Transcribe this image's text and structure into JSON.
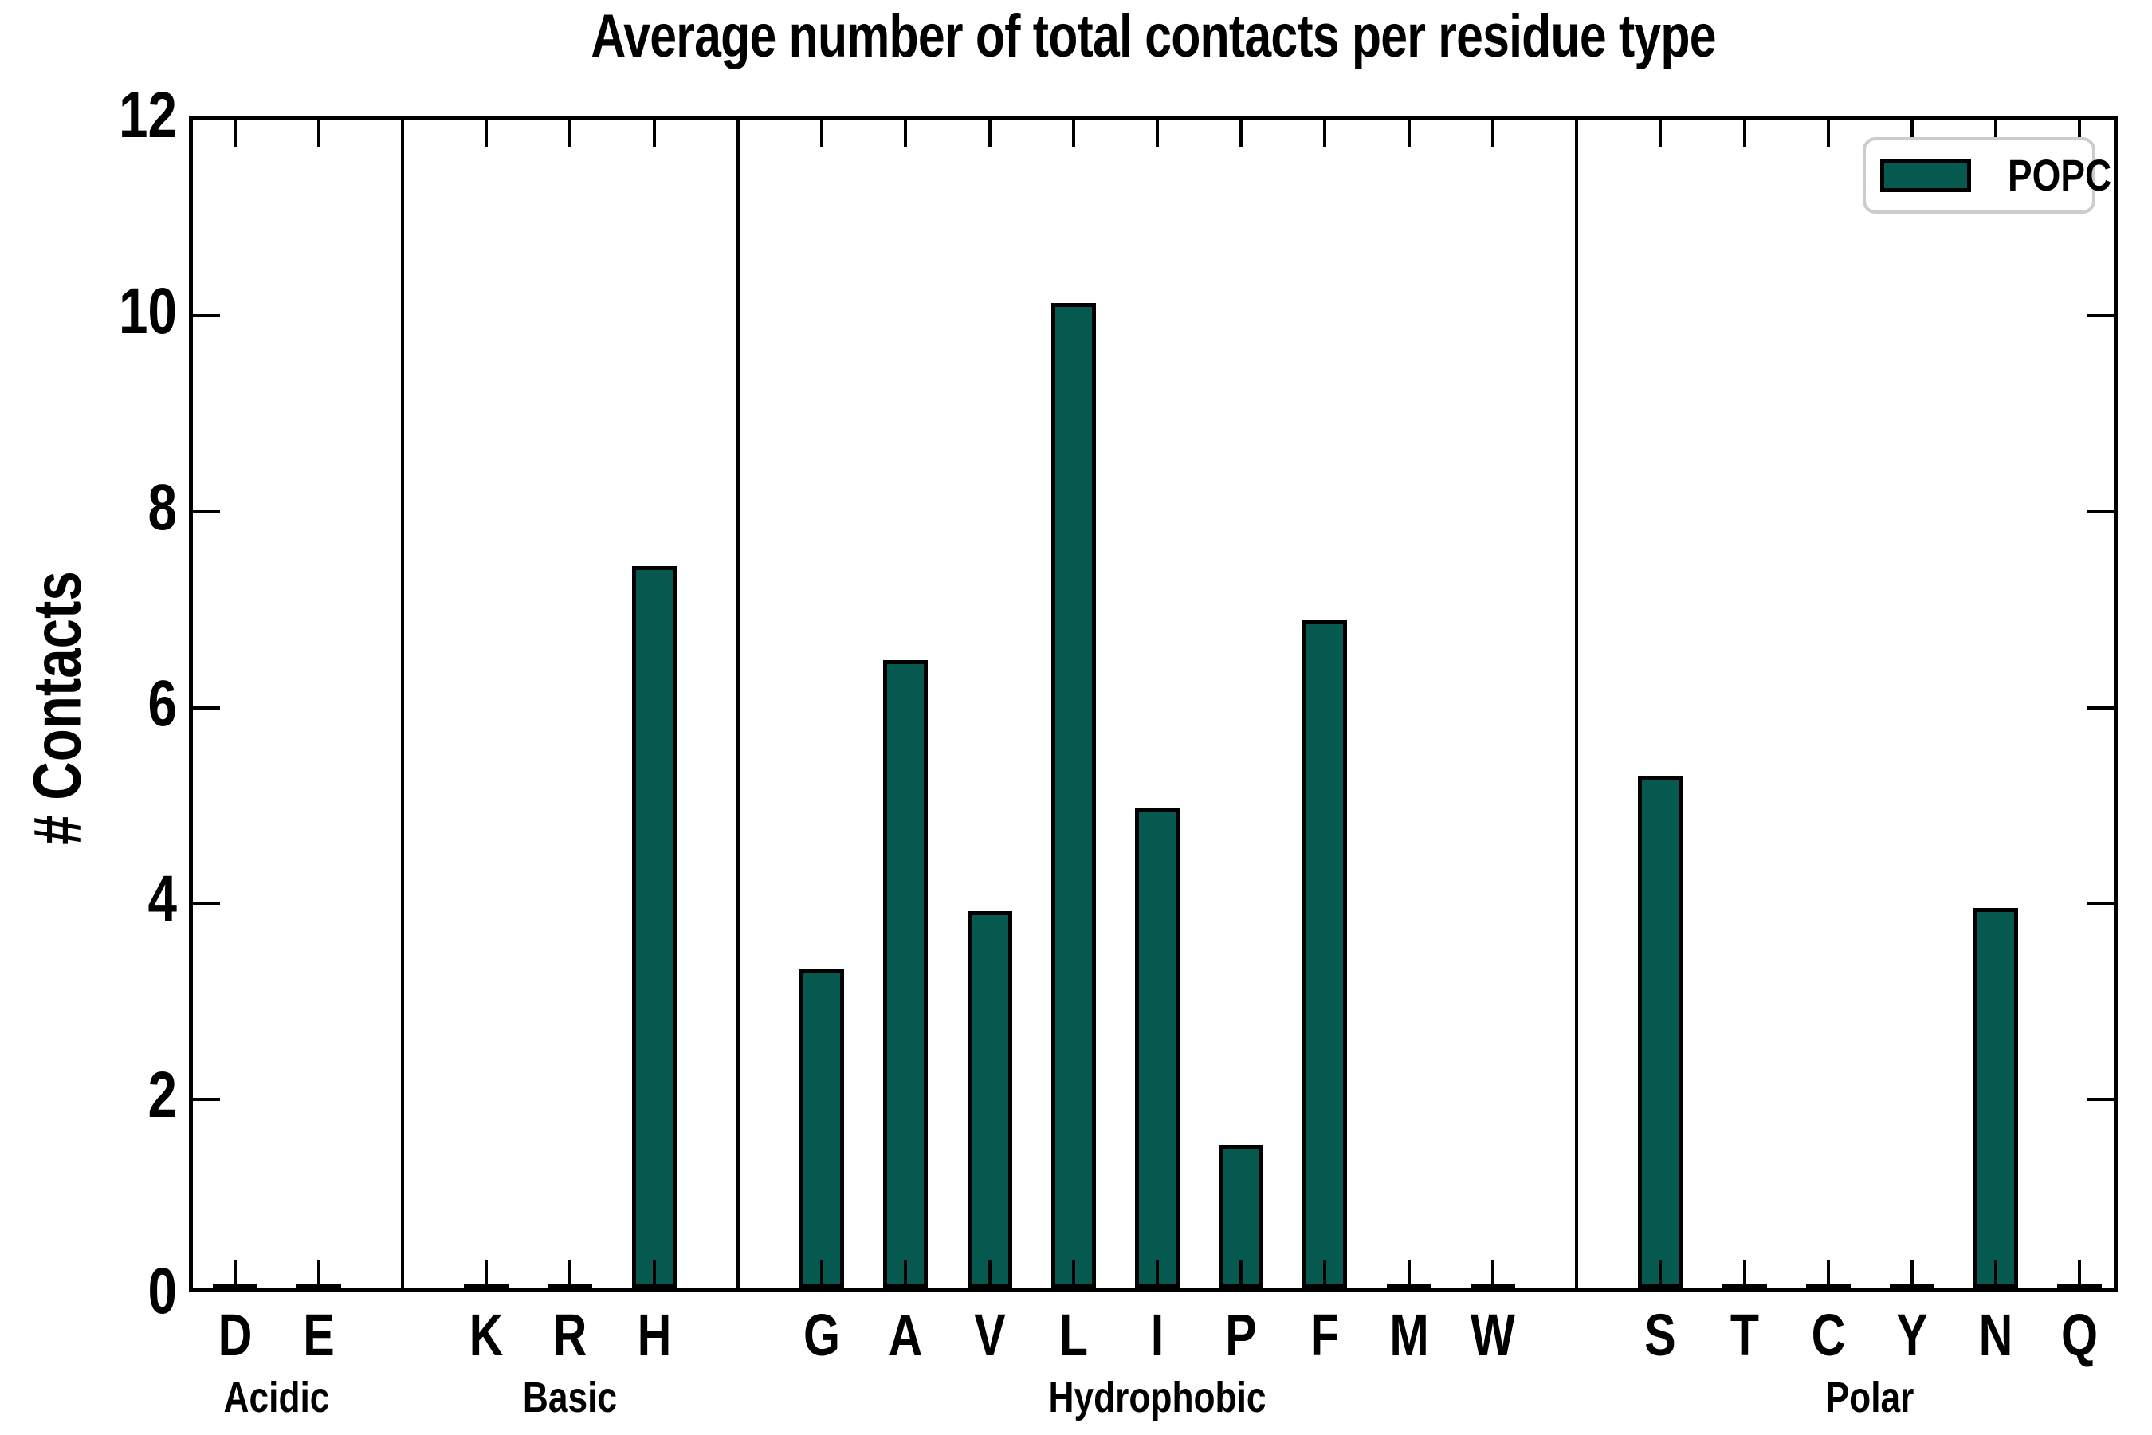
{
  "chart_data": {
    "type": "bar",
    "title": "Average number of total contacts per residue type",
    "ylabel": "# Contacts",
    "ylim": [
      0,
      12
    ],
    "yticks": [
      0,
      2,
      4,
      6,
      8,
      10,
      12
    ],
    "legend": {
      "position": "upper right",
      "entries": [
        {
          "label": "POPC",
          "color": "#06594e"
        }
      ]
    },
    "bar_color": "#06594e",
    "bar_edge_color": "#000000",
    "categories": [
      "D",
      "E",
      "K",
      "R",
      "H",
      "G",
      "A",
      "V",
      "L",
      "I",
      "P",
      "F",
      "M",
      "W",
      "S",
      "T",
      "C",
      "Y",
      "N",
      "Q"
    ],
    "values": [
      0.03,
      0.03,
      0.03,
      0.03,
      7.36,
      3.25,
      6.4,
      3.84,
      10.05,
      4.9,
      1.46,
      6.81,
      0.03,
      0.03,
      5.22,
      0.03,
      0.03,
      0.03,
      3.87,
      0.03
    ],
    "groups": [
      {
        "label": "Acidic",
        "residues": [
          {
            "letter": "D",
            "value": 0.03
          },
          {
            "letter": "E",
            "value": 0.03
          }
        ]
      },
      {
        "label": "Basic",
        "residues": [
          {
            "letter": "K",
            "value": 0.03
          },
          {
            "letter": "R",
            "value": 0.03
          },
          {
            "letter": "H",
            "value": 7.36
          }
        ]
      },
      {
        "label": "Hydrophobic",
        "residues": [
          {
            "letter": "G",
            "value": 3.25
          },
          {
            "letter": "A",
            "value": 6.4
          },
          {
            "letter": "V",
            "value": 3.84
          },
          {
            "letter": "L",
            "value": 10.05
          },
          {
            "letter": "I",
            "value": 4.9
          },
          {
            "letter": "P",
            "value": 1.46
          },
          {
            "letter": "F",
            "value": 6.81
          },
          {
            "letter": "M",
            "value": 0.03
          },
          {
            "letter": "W",
            "value": 0.03
          }
        ]
      },
      {
        "label": "Polar",
        "residues": [
          {
            "letter": "S",
            "value": 5.22
          },
          {
            "letter": "T",
            "value": 0.03
          },
          {
            "letter": "C",
            "value": 0.03
          },
          {
            "letter": "Y",
            "value": 0.03
          },
          {
            "letter": "N",
            "value": 3.87
          },
          {
            "letter": "Q",
            "value": 0.03
          }
        ]
      }
    ]
  }
}
